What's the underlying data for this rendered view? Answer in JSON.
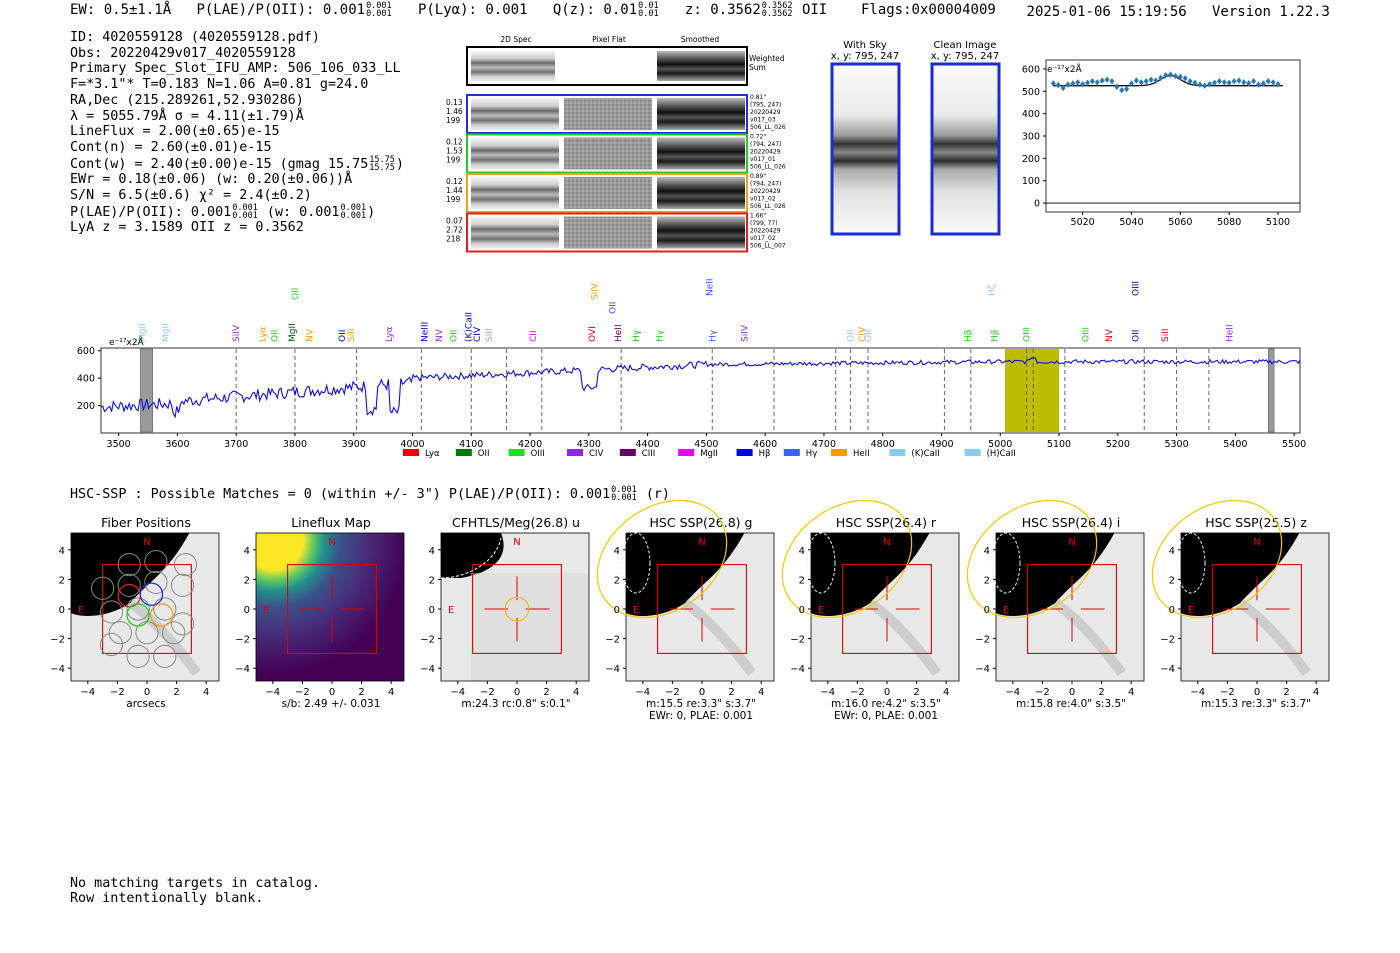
{
  "header": {
    "ew": "EW: 0.5±1.1Å",
    "plae_label": "P(LAE)/P(OII):",
    "plae_value": "0.001",
    "plae_hi": "0.001",
    "plae_lo": "0.001",
    "plya": "P(Lyα): 0.001",
    "qz_label": "Q(z):",
    "qz_value": "0.01",
    "qz_hi": "0.01",
    "qz_lo": "0.01",
    "z_label": "z:",
    "z_value": "0.3562",
    "z_hi": "0.3562",
    "z_lo": "0.3562",
    "z_line": "OII",
    "flags": "Flags:0x00004009",
    "datetime": "2025-01-06 15:19:56",
    "version": "Version 1.22.3"
  },
  "info": {
    "id": "ID: 4020559128 (4020559128.pdf)",
    "obs": "Obs: 20220429v017_4020559128",
    "primary": "Primary Spec_Slot_IFU_AMP: 506_106_033_LL",
    "fwhm": "F=*3.1\"*  T=0.183  N=1.06  A=0.81  g=24.0",
    "radec": "RA,Dec (215.289261,52.930286)",
    "wave": "λ = 5055.79Å   σ = 4.11(±1.79)Å",
    "lineflux": "LineFlux = 2.00(±0.65)e-15",
    "contn": "Cont(n) = 2.60(±0.01)e-15",
    "contw_text": "Cont(w) = 2.40(±0.00)e-15 (gmag 15.75",
    "contw_hi": "15.75",
    "contw_lo": "15.75",
    "ewr": "EWr = 0.18(±0.06) (w: 0.20(±0.06))Å",
    "sn": "S/N = 6.5(±0.6)  χ² = 2.4(±0.2)",
    "plae_text": "P(LAE)/P(OII): 0.001",
    "plae_hi": "0.001",
    "plae_lo": "0.001",
    "plae_w_text": "(w: 0.001",
    "plae_w_hi": "0.001",
    "plae_w_lo": "0.001",
    "lya_oii": "LyA z = 3.1589   OII z = 0.3562"
  },
  "cutouts": {
    "col_titles": [
      "2D Spec",
      "Pixel Flat",
      "Smoothed"
    ],
    "weighted_label": [
      "Weighted",
      "Sum"
    ],
    "rows": [
      {
        "stats": [
          "0.13",
          "1.46",
          "199"
        ],
        "meta": [
          "0.81\"",
          "(795, 247)",
          "20220429",
          "v017_03",
          "506_LL_026"
        ],
        "color": "#2030d8"
      },
      {
        "stats": [
          "0.12",
          "1.53",
          "199"
        ],
        "meta": [
          "0.72\"",
          "(794, 247)",
          "20220429",
          "v017_01",
          "506_LL_026"
        ],
        "color": "#22cc22"
      },
      {
        "stats": [
          "0.12",
          "1.44",
          "199"
        ],
        "meta": [
          "0.89\"",
          "(794, 247)",
          "20220429",
          "v017_02",
          "506_LL_026"
        ],
        "color": "#f0a020"
      },
      {
        "stats": [
          "0.07",
          "2.72",
          "218"
        ],
        "meta": [
          "1.66\"",
          "(799, 77)",
          "20220429",
          "v017_02",
          "506_LL_007"
        ],
        "color": "#e02020"
      }
    ]
  },
  "sky": {
    "with_sky_title": "With Sky",
    "with_sky_xy": "x, y: 795, 247",
    "clean_title": "Clean Image",
    "clean_xy": "x, y: 795, 247"
  },
  "zoom_chart": {
    "unit_label": "e⁻¹⁷x2Å",
    "yticks": [
      0,
      100,
      200,
      300,
      400,
      500,
      600
    ],
    "xticks": [
      5020,
      5040,
      5060,
      5080,
      5100
    ],
    "xlim": [
      5005,
      5109
    ],
    "ylim": [
      -40,
      640
    ]
  },
  "full_spectrum": {
    "unit_label": "e⁻¹⁷x2Å",
    "yticks": [
      200,
      400,
      600
    ],
    "xticks": [
      3500,
      3600,
      3700,
      3800,
      3900,
      4000,
      4100,
      4200,
      4300,
      4400,
      4500,
      4600,
      4700,
      4800,
      4900,
      5000,
      5100,
      5200,
      5300,
      5400,
      5500
    ],
    "xlim": [
      3470,
      5510
    ],
    "ylim": [
      0,
      620
    ],
    "lines": [
      {
        "label": "MgII",
        "x": 3540,
        "color": "#88ccee",
        "row": 0
      },
      {
        "label": "MgII",
        "x": 3580,
        "color": "#88ccee",
        "row": 0
      },
      {
        "label": "SiIV",
        "x": 3700,
        "color": "#8e2be2",
        "row": 0
      },
      {
        "label": "Lyα",
        "x": 3745,
        "color": "#ff9900",
        "row": 0
      },
      {
        "label": "OII",
        "x": 3765,
        "color": "#22cc22",
        "row": 0
      },
      {
        "label": "MgII",
        "x": 3795,
        "color": "#006400",
        "row": 0
      },
      {
        "label": "OII",
        "x": 3800,
        "color": "#22dd22",
        "row": 2
      },
      {
        "label": "NV",
        "x": 3825,
        "color": "#ff9900",
        "row": 0
      },
      {
        "label": "OII",
        "x": 3880,
        "color": "#0000cc",
        "row": 0
      },
      {
        "label": "SiII",
        "x": 3895,
        "color": "#ff9900",
        "row": 0
      },
      {
        "label": "Lyα",
        "x": 3960,
        "color": "#8e2be2",
        "row": 0
      },
      {
        "label": "NeIII",
        "x": 4020,
        "color": "#0000cc",
        "row": 0
      },
      {
        "label": "NV",
        "x": 4045,
        "color": "#8e2be2",
        "row": 0
      },
      {
        "label": "OII",
        "x": 4070,
        "color": "#22cc22",
        "row": 0
      },
      {
        "label": "(K)CaII",
        "x": 4095,
        "color": "#0000cc",
        "row": 0
      },
      {
        "label": "CIV",
        "x": 4110,
        "color": "#0000cc",
        "row": 0
      },
      {
        "label": "SiII",
        "x": 4130,
        "color": "#cc88ff",
        "row": 0
      },
      {
        "label": "CII",
        "x": 4205,
        "color": "#ee00ee",
        "row": 0
      },
      {
        "label": "OVI",
        "x": 4305,
        "color": "#ee0000",
        "row": 0
      },
      {
        "label": "SiIV",
        "x": 4310,
        "color": "#ff9900",
        "row": 2
      },
      {
        "label": "OII",
        "x": 4340,
        "color": "#3355ff",
        "row": 1
      },
      {
        "label": "HeII",
        "x": 4350,
        "color": "#660066",
        "row": 0
      },
      {
        "label": "Hγ",
        "x": 4380,
        "color": "#22cc22",
        "row": 0
      },
      {
        "label": "Hγ",
        "x": 4420,
        "color": "#22cc22",
        "row": 0
      },
      {
        "label": "Hγ",
        "x": 4510,
        "color": "#3355ff",
        "row": 0
      },
      {
        "label": "NeII",
        "x": 4505,
        "color": "#3355ff",
        "row": 3
      },
      {
        "label": "SiIV",
        "x": 4565,
        "color": "#8e2be2",
        "row": 0
      },
      {
        "label": "OII",
        "x": 4745,
        "color": "#88ccee",
        "row": 0
      },
      {
        "label": "CIV",
        "x": 4765,
        "color": "#ff9900",
        "row": 0
      },
      {
        "label": "OII",
        "x": 4775,
        "color": "#88ccee",
        "row": 0
      },
      {
        "label": "Hβ",
        "x": 4945,
        "color": "#22cc22",
        "row": 0
      },
      {
        "label": "Hβ",
        "x": 4990,
        "color": "#22cc22",
        "row": 0
      },
      {
        "label": "Hζ",
        "x": 4985,
        "color": "#88ccee",
        "row": 3
      },
      {
        "label": "OIII",
        "x": 5045,
        "color": "#22cc22",
        "row": 0
      },
      {
        "label": "OIII",
        "x": 5145,
        "color": "#22cc22",
        "row": 0
      },
      {
        "label": "NV",
        "x": 5185,
        "color": "#ee0000",
        "row": 0
      },
      {
        "label": "OII",
        "x": 5230,
        "color": "#0000cc",
        "row": 0
      },
      {
        "label": "OIII",
        "x": 5230,
        "color": "#0000cc",
        "row": 3
      },
      {
        "label": "SiII",
        "x": 5280,
        "color": "#ee0000",
        "row": 0
      },
      {
        "label": "HeII",
        "x": 5390,
        "color": "#8e2be2",
        "row": 0
      }
    ],
    "legend": [
      {
        "label": "Lyα",
        "color": "#ee0000"
      },
      {
        "label": "OII",
        "color": "#007700"
      },
      {
        "label": "OIII",
        "color": "#22dd22"
      },
      {
        "label": "CIV",
        "color": "#8e2be2"
      },
      {
        "label": "CIII",
        "color": "#660066"
      },
      {
        "label": "MgII",
        "color": "#ee00ee"
      },
      {
        "label": "Hβ",
        "color": "#0000ee"
      },
      {
        "label": "Hγ",
        "color": "#3366ee"
      },
      {
        "label": "HeII",
        "color": "#ff9900"
      },
      {
        "label": "(K)CaII",
        "color": "#88ccee"
      },
      {
        "label": "(H)CaII",
        "color": "#88ccee"
      }
    ]
  },
  "hsc": {
    "text": "HSC-SSP : Possible Matches = 0 (within +/- 3\")  P(LAE)/P(OII): 0.001",
    "hi": "0.001",
    "lo": "0.001",
    "band": "(r)"
  },
  "stamps": [
    {
      "title": "Fiber Positions",
      "caption": [
        "arcsecs"
      ]
    },
    {
      "title": "Lineflux Map",
      "caption": [
        "s/b: 2.49 +/- 0.031"
      ]
    },
    {
      "title": "CFHTLS/Meg(26.8) u",
      "caption": [
        "m:24.3 rc:0.8\"  s:0.1\""
      ]
    },
    {
      "title": "HSC SSP(26.8) g",
      "caption": [
        "m:15.5  re:3.3\"  s:3.7\"",
        "EWr: 0, PLAE: 0.001"
      ]
    },
    {
      "title": "HSC SSP(26.4) r",
      "caption": [
        "m:16.0  re:4.2\"  s:3.5\"",
        "EWr: 0, PLAE: 0.001"
      ]
    },
    {
      "title": "HSC SSP(26.4) i",
      "caption": [
        "m:15.8  re:4.0\"  s:3.5\""
      ]
    },
    {
      "title": "HSC SSP(25.5) z",
      "caption": [
        "m:15.3  re:3.3\"  s:3.7\""
      ]
    }
  ],
  "stamp_axes": {
    "ticks": [
      "4",
      "2",
      "0",
      "−2",
      "−4"
    ],
    "xticks": [
      "−4",
      "−2",
      "0",
      "2",
      "4"
    ],
    "north": "N",
    "east": "E"
  },
  "footer": {
    "line1": "No matching targets in catalog.",
    "line2": "Row intentionally blank."
  }
}
